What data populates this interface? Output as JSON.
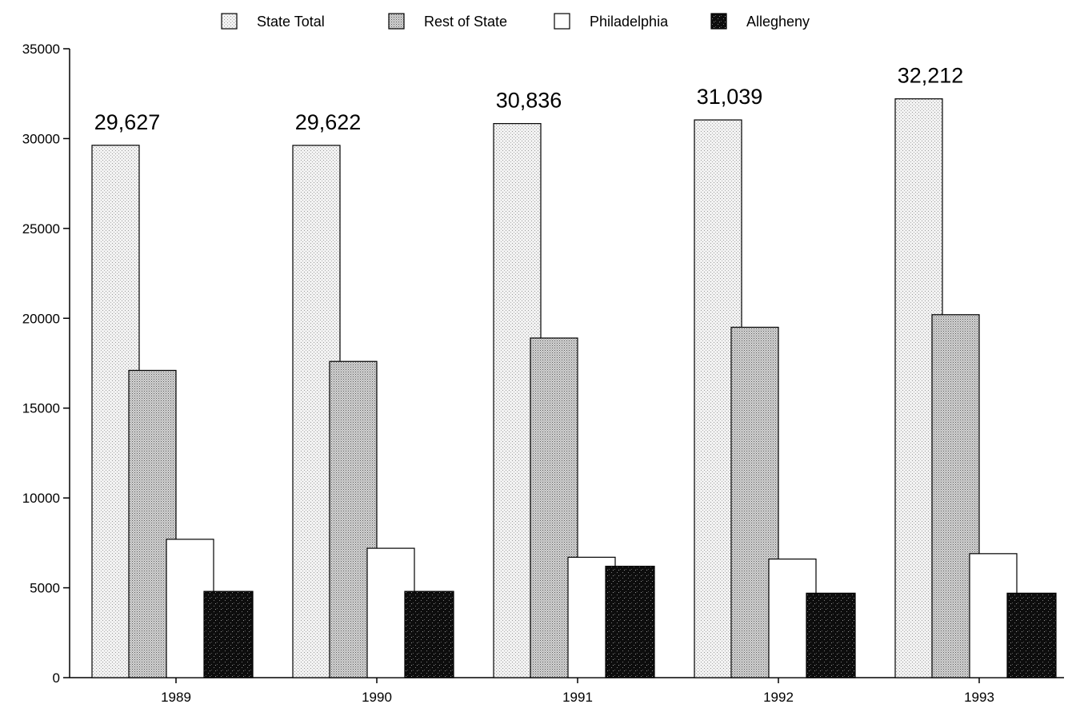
{
  "chart_data": {
    "type": "bar",
    "categories": [
      "1989",
      "1990",
      "1991",
      "1992",
      "1993"
    ],
    "series": [
      {
        "name": "State Total",
        "values": [
          29627,
          29622,
          30836,
          31039,
          32212
        ],
        "color": "#e4e4e4"
      },
      {
        "name": "Rest of State",
        "values": [
          17100,
          17600,
          18900,
          19500,
          20200
        ],
        "color": "#b8b8b8"
      },
      {
        "name": "Philadelphia",
        "values": [
          7700,
          7200,
          6700,
          6600,
          6900
        ],
        "color": "#ffffff"
      },
      {
        "name": "Allegheny",
        "values": [
          4800,
          4800,
          6200,
          4700,
          4700
        ],
        "color": "#141414"
      }
    ],
    "data_labels": [
      "29,627",
      "29,622",
      "30,836",
      "31,039",
      "32,212"
    ],
    "yticks": [
      "0",
      "5000",
      "10000",
      "15000",
      "20000",
      "25000",
      "30000",
      "35000"
    ],
    "ylim": [
      0,
      35000
    ],
    "legend_position": "top-center",
    "grid": false,
    "title": "",
    "xlabel": "",
    "ylabel": ""
  }
}
